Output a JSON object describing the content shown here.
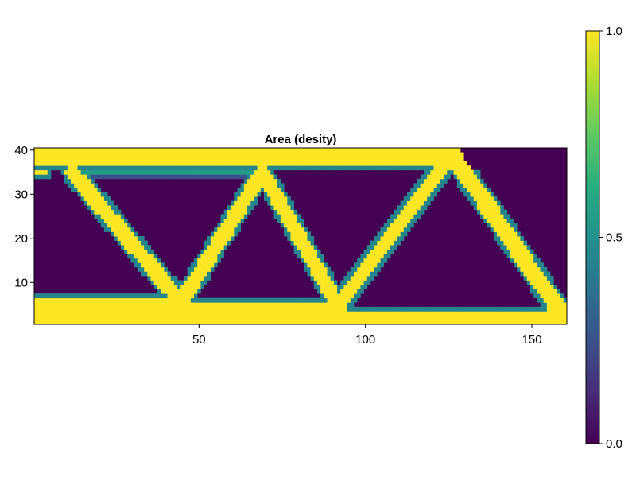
{
  "chart_data": {
    "type": "heatmap",
    "title": "Area (desity)",
    "xlabel": "",
    "ylabel": "",
    "xlim": [
      0.5,
      160.5
    ],
    "ylim": [
      0.5,
      40.5
    ],
    "x_ticks": [
      50,
      100,
      150
    ],
    "y_ticks": [
      10,
      20,
      30,
      40
    ],
    "colormap": "viridis",
    "colorbar": {
      "range": [
        0.0,
        1.0
      ],
      "ticks": [
        0.0,
        0.5,
        1.0
      ],
      "tick_labels": [
        "0.0",
        "0.5",
        "1.0"
      ]
    },
    "colors": {
      "low": "#440154",
      "mid": "#21918c",
      "high": "#fde725"
    },
    "members": [
      {
        "name": "top-chord",
        "from": [
          1,
          38.5
        ],
        "to": [
          126,
          38.5
        ],
        "width": 4.5,
        "value": 1.0
      },
      {
        "name": "top-left-stub",
        "from": [
          1,
          35
        ],
        "to": [
          4,
          35
        ],
        "width": 1.5,
        "value": 1.0
      },
      {
        "name": "bottom-chord-left",
        "from": [
          1,
          3.5
        ],
        "to": [
          45,
          3.5
        ],
        "width": 5.5,
        "value": 1.0
      },
      {
        "name": "bottom-chord-mid",
        "from": [
          45,
          3
        ],
        "to": [
          92,
          3
        ],
        "width": 4.5,
        "value": 1.0
      },
      {
        "name": "bottom-chord-right",
        "from": [
          92,
          2
        ],
        "to": [
          160,
          2
        ],
        "width": 3.5,
        "value": 1.0
      },
      {
        "name": "inner-top-ledge",
        "from": [
          14,
          35
        ],
        "to": [
          70,
          35
        ],
        "width": 1.2,
        "value": 0.55
      },
      {
        "name": "diag-1",
        "from": [
          12,
          35
        ],
        "to": [
          43,
          7
        ],
        "width": 4.0,
        "value": 1.0
      },
      {
        "name": "diag-2",
        "from": [
          45,
          6
        ],
        "to": [
          69,
          35
        ],
        "width": 4.0,
        "value": 1.0
      },
      {
        "name": "diag-3",
        "from": [
          69,
          35
        ],
        "to": [
          91,
          6
        ],
        "width": 4.0,
        "value": 1.0
      },
      {
        "name": "diag-4",
        "from": [
          92,
          5
        ],
        "to": [
          123,
          36
        ],
        "width": 4.0,
        "value": 1.0
      },
      {
        "name": "diag-5",
        "from": [
          126,
          39
        ],
        "to": [
          158,
          4
        ],
        "width": 4.5,
        "value": 1.0
      }
    ]
  }
}
